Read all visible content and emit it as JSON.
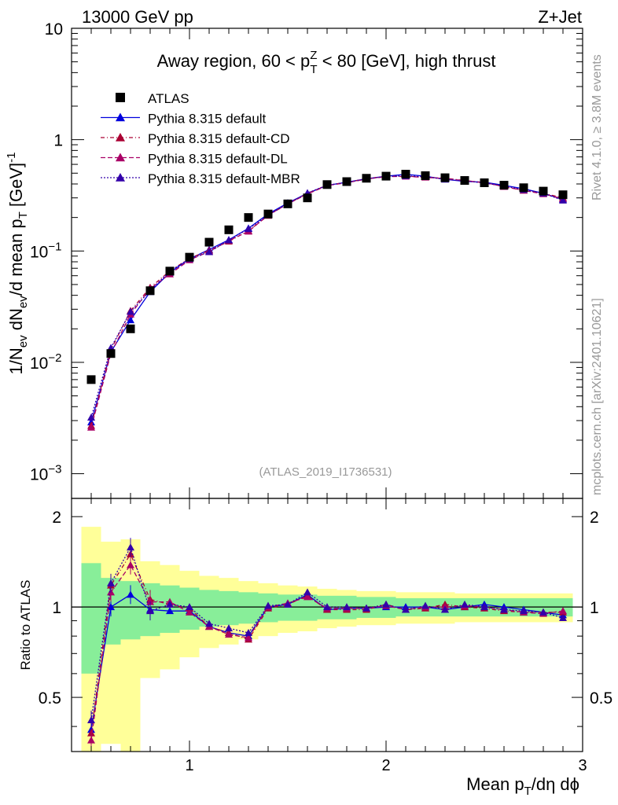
{
  "header": {
    "left": "13000 GeV pp",
    "right": "Z+Jet"
  },
  "top_title": {
    "main": "Away region, 60 < p",
    "sup": "Z",
    "sub": "T",
    "tail": " < 80 [GeV], high thrust"
  },
  "ylabel_parts": [
    "1/N",
    "ev",
    " dN",
    "ev",
    "/d mean p",
    "T",
    " [GeV]",
    "-1"
  ],
  "xlabel_parts": [
    "Mean p",
    "T",
    "/dη dϕ"
  ],
  "ratio_ylabel": "Ratio to ATLAS",
  "ref_label": "(ATLAS_2019_I1736531)",
  "side_text_top": "Rivet 4.1.0, ≥ 3.8M events",
  "side_text_bottom": "mcplots.cern.ch [arXiv:2401.10621]",
  "x_ticks": [
    "1",
    "2",
    "3"
  ],
  "y_ticks_main": [
    {
      "base": "10",
      "exp": "",
      "val": 10
    },
    {
      "base": "1",
      "exp": "",
      "val": 1
    },
    {
      "base": "10",
      "exp": "−1",
      "val": 0.1
    },
    {
      "base": "10",
      "exp": "−2",
      "val": 0.01
    },
    {
      "base": "10",
      "exp": "−3",
      "val": 0.001
    }
  ],
  "y_ticks_ratio": [
    "0.5",
    "1",
    "2"
  ],
  "colors": {
    "data": "#000000",
    "default": "#0000dd",
    "cd": "#aa0033",
    "dl": "#aa0066",
    "mbr": "#3300aa",
    "band_inner": "#88ee99",
    "band_outer": "#ffff99"
  },
  "chart_data": {
    "type": "scatter",
    "title": "Away region, 60 < pT^Z < 80 [GeV], high thrust",
    "xlabel": "Mean pT/dη dϕ",
    "ylabel": "1/Nev dNev/d mean pT [GeV]^-1",
    "xlim": [
      0.4,
      3.0
    ],
    "ylim_main": [
      0.0006,
      10
    ],
    "yscale_main": "log",
    "ylim_ratio": [
      0.33,
      2.3
    ],
    "yscale_ratio": "log",
    "x": [
      0.5,
      0.6,
      0.7,
      0.8,
      0.9,
      1.0,
      1.1,
      1.2,
      1.3,
      1.4,
      1.5,
      1.6,
      1.7,
      1.8,
      1.9,
      2.0,
      2.1,
      2.2,
      2.3,
      2.4,
      2.5,
      2.6,
      2.7,
      2.8,
      2.9
    ],
    "series": [
      {
        "name": "ATLAS",
        "key": "data",
        "marker": "square",
        "values": [
          0.007,
          0.012,
          0.02,
          0.044,
          0.066,
          0.088,
          0.12,
          0.155,
          0.2,
          0.215,
          0.265,
          0.3,
          0.395,
          0.42,
          0.45,
          0.47,
          0.49,
          0.475,
          0.455,
          0.43,
          0.41,
          0.39,
          0.37,
          0.345,
          0.32
        ]
      },
      {
        "name": "Pythia 8.315 default",
        "key": "default",
        "dash": "",
        "marker": "triangle",
        "values": [
          0.0029,
          0.0124,
          0.024,
          0.043,
          0.064,
          0.085,
          0.103,
          0.126,
          0.16,
          0.215,
          0.27,
          0.33,
          0.388,
          0.415,
          0.445,
          0.47,
          0.488,
          0.47,
          0.44,
          0.422,
          0.415,
          0.389,
          0.362,
          0.33,
          0.29
        ],
        "ratio": [
          0.39,
          1.0,
          1.1,
          0.98,
          0.97,
          0.97,
          0.86,
          0.82,
          0.8,
          1.0,
          1.02,
          1.1,
          0.98,
          0.99,
          0.99,
          1.0,
          1.0,
          1.0,
          0.98,
          1.0,
          1.02,
          1.0,
          0.98,
          0.96,
          0.94
        ]
      },
      {
        "name": "Pythia 8.315 default-CD",
        "key": "cd",
        "dash": "5,3,1,3",
        "marker": "triangle",
        "values": [
          0.0027,
          0.013,
          0.029,
          0.047,
          0.066,
          0.086,
          0.101,
          0.122,
          0.152,
          0.208,
          0.266,
          0.328,
          0.39,
          0.413,
          0.446,
          0.468,
          0.47,
          0.46,
          0.45,
          0.43,
          0.41,
          0.38,
          0.35,
          0.33,
          0.3
        ],
        "ratio": [
          0.38,
          1.18,
          1.5,
          1.06,
          1.02,
          0.99,
          0.86,
          0.82,
          0.78,
          0.99,
          1.02,
          1.09,
          0.98,
          0.98,
          0.98,
          1.02,
          0.98,
          0.99,
          1.02,
          1.0,
          0.99,
          0.97,
          0.96,
          0.96,
          0.96
        ]
      },
      {
        "name": "Pythia 8.315 default-DL",
        "key": "dl",
        "dash": "6,3",
        "marker": "triangle",
        "values": [
          0.0026,
          0.012,
          0.027,
          0.046,
          0.062,
          0.083,
          0.099,
          0.124,
          0.15,
          0.21,
          0.265,
          0.325,
          0.387,
          0.41,
          0.443,
          0.465,
          0.468,
          0.458,
          0.448,
          0.428,
          0.412,
          0.378,
          0.35,
          0.325,
          0.295
        ],
        "ratio": [
          0.36,
          1.12,
          1.38,
          1.04,
          1.04,
          0.96,
          0.86,
          0.81,
          0.79,
          1.0,
          1.03,
          1.08,
          0.99,
          0.99,
          0.99,
          1.01,
          0.98,
          1.0,
          1.0,
          1.01,
          1.0,
          0.98,
          0.96,
          0.95,
          0.97
        ]
      },
      {
        "name": "Pythia 8.315 default-MBR",
        "key": "mbr",
        "dash": "2,2",
        "marker": "triangle",
        "values": [
          0.0032,
          0.0135,
          0.0285,
          0.044,
          0.066,
          0.085,
          0.098,
          0.125,
          0.158,
          0.21,
          0.266,
          0.332,
          0.39,
          0.413,
          0.445,
          0.468,
          0.472,
          0.465,
          0.44,
          0.426,
          0.408,
          0.384,
          0.355,
          0.33,
          0.285
        ],
        "ratio": [
          0.42,
          1.2,
          1.58,
          0.97,
          1.02,
          1.0,
          0.88,
          0.85,
          0.82,
          1.01,
          1.02,
          1.12,
          1.0,
          1.0,
          0.99,
          1.02,
          0.98,
          1.01,
          0.98,
          1.02,
          1.0,
          0.98,
          0.97,
          0.96,
          0.92
        ]
      }
    ],
    "band_inner_half": [
      0.4,
      0.25,
      0.22,
      0.2,
      0.18,
      0.16,
      0.14,
      0.13,
      0.12,
      0.11,
      0.1,
      0.1,
      0.09,
      0.09,
      0.08,
      0.08,
      0.07,
      0.07,
      0.07,
      0.07,
      0.07,
      0.07,
      0.07,
      0.07,
      0.07
    ],
    "band_outer_half": [
      0.85,
      0.65,
      0.68,
      0.42,
      0.38,
      0.32,
      0.27,
      0.25,
      0.22,
      0.2,
      0.18,
      0.17,
      0.15,
      0.14,
      0.13,
      0.13,
      0.12,
      0.12,
      0.12,
      0.11,
      0.11,
      0.11,
      0.11,
      0.11,
      0.11
    ]
  }
}
